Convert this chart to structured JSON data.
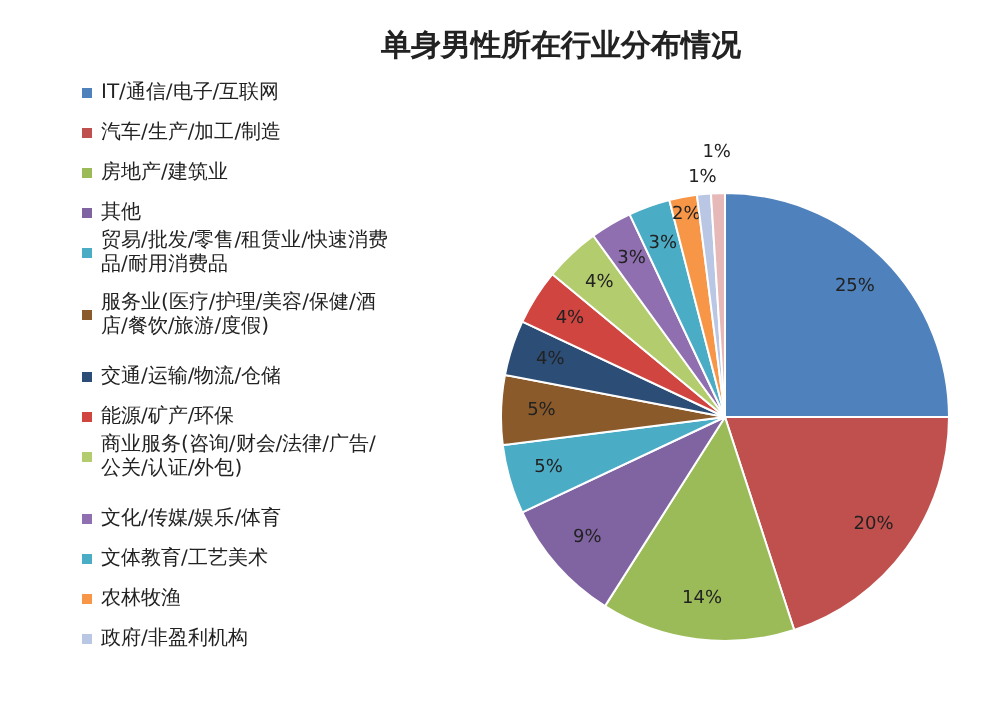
{
  "chart_data": {
    "type": "pie",
    "title": "单身男性所在行业分布情况",
    "categories": [
      "IT/通信/电子/互联网",
      "汽车/生产/加工/制造",
      "房地产/建筑业",
      "其他",
      "贸易/批发/零售/租赁业/快速消费品/耐用消费品",
      "服务业(医疗/护理/美容/保健/酒店/餐饮/旅游/度假)",
      "交通/运输/物流/仓储",
      "能源/矿产/环保",
      "商业服务(咨询/财会/法律/广告/公关/认证/外包)",
      "文化/传媒/娱乐/体育",
      "文体教育/工艺美术",
      "农林牧渔",
      "政府/非盈利机构",
      null
    ],
    "values": [
      25,
      20,
      14,
      9,
      5,
      5,
      4,
      4,
      4,
      3,
      3,
      2,
      1,
      1
    ],
    "colors": [
      "#4f81bd",
      "#c0504d",
      "#9bbb59",
      "#8064a2",
      "#4bacc6",
      "#8a5a2b",
      "#2c4d75",
      "#d0453f",
      "#b3cc6e",
      "#8f6fb0",
      "#4bacc6",
      "#f79646",
      "#b9c7e4",
      "#e6b9b8"
    ],
    "value_labels": [
      "25%",
      "20%",
      "14%",
      "9%",
      "5%",
      "5%",
      "4%",
      "4%",
      "4%",
      "3%",
      "3%",
      "2%",
      "1%",
      "1%"
    ],
    "legend": "left"
  }
}
